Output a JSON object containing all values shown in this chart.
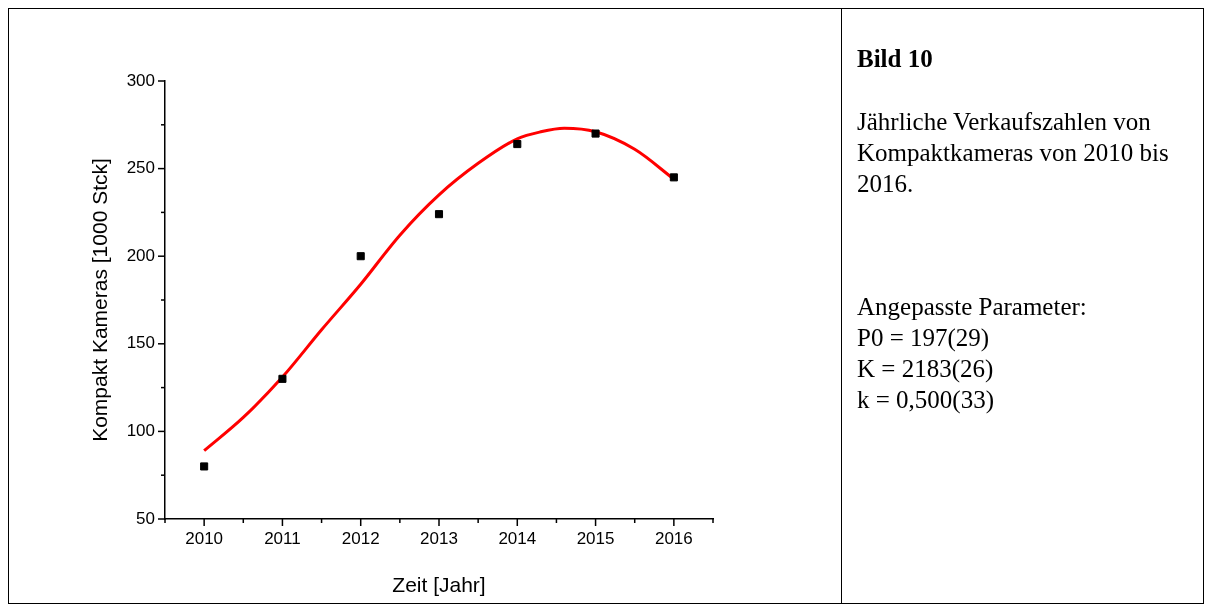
{
  "chart_data": {
    "type": "scatter",
    "title": "Bild 10",
    "subtitle": "Jährliche Verkaufszahlen von Kompaktkameras von 2010 bis 2016.",
    "xlabel": "Zeit [Jahr]",
    "ylabel": "Kompakt Kameras [1000 Stck]",
    "annotations": [
      "Angepasste Parameter:",
      "P0 = 197(29)",
      "K = 2183(26)",
      "k = 0,500(33)"
    ],
    "x": [
      2010,
      2011,
      2012,
      2013,
      2014,
      2015,
      2016
    ],
    "series": [
      {
        "type": "scatter",
        "color": "#000000",
        "values": [
          80,
          130,
          200,
          224,
          264,
          270,
          245
        ]
      },
      {
        "type": "line",
        "color": "#ff0000",
        "marker": "none",
        "x": [
          2010,
          2010.5,
          2011,
          2011.5,
          2012,
          2012.5,
          2013,
          2013.5,
          2014,
          2014.3,
          2014.6,
          2015,
          2015.5,
          2016
        ],
        "values": [
          89,
          108,
          131,
          158,
          184,
          212,
          235,
          253,
          267,
          271,
          273,
          271,
          261,
          244
        ]
      }
    ],
    "marker": "square",
    "xlim": [
      2009.5,
      2016.5
    ],
    "xticks": [
      {
        "value": 2009.5,
        "label": null
      },
      2010,
      {
        "value": 2010.5,
        "label": null
      },
      2011,
      {
        "value": 2011.5,
        "label": null
      },
      2012,
      {
        "value": 2012.5,
        "label": null
      },
      2013,
      {
        "value": 2013.5,
        "label": null
      },
      2014,
      {
        "value": 2014.5,
        "label": null
      },
      2015,
      {
        "value": 2015.5,
        "label": null
      },
      2016,
      {
        "value": 2016.5,
        "label": null
      }
    ],
    "ylim": [
      50,
      300
    ],
    "yticks": [
      50,
      {
        "value": 75,
        "label": null
      },
      100,
      {
        "value": 125,
        "label": null
      },
      150,
      {
        "value": 175,
        "label": null
      },
      200,
      {
        "value": 225,
        "label": null
      },
      250,
      {
        "value": 275,
        "label": null
      },
      300
    ],
    "grid": false,
    "legend": false
  }
}
